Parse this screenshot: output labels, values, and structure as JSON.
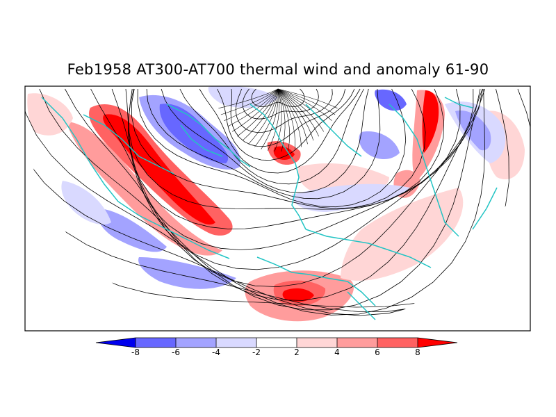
{
  "title": "Feb1958 AT300-AT700 thermal wind and anomaly 61-90",
  "colorbar": {
    "labels": [
      "-8",
      "-6",
      "-4",
      "-2",
      "2",
      "4",
      "6",
      "8"
    ],
    "colors": [
      "#0000ee",
      "#6767ff",
      "#a3a3ff",
      "#d9d9ff",
      "#ffffff",
      "#ffd6d6",
      "#ff9c9c",
      "#ff6262",
      "#ff0000"
    ]
  },
  "colors": {
    "coastline": "#22c4c4",
    "streamline": "#000000",
    "frame": "#000000"
  }
}
